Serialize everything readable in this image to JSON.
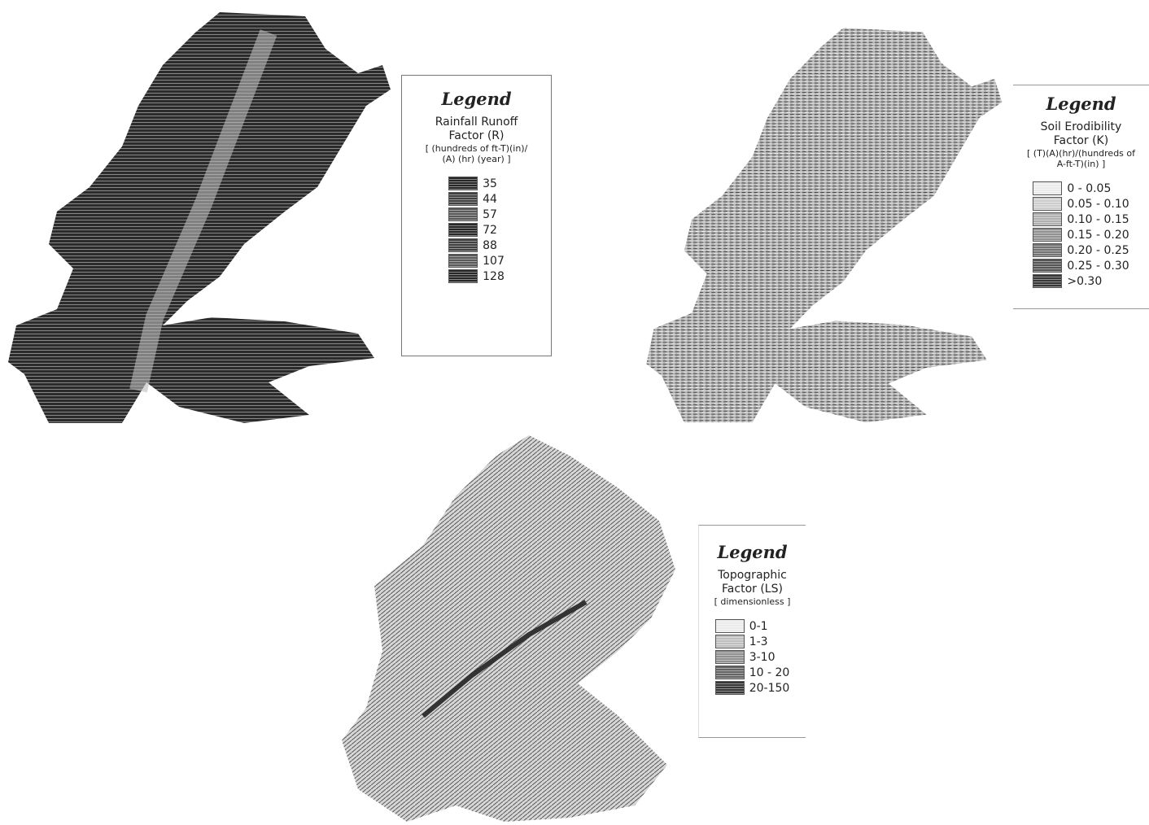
{
  "maps": [
    {
      "legend": {
        "heading": "Legend",
        "title": [
          "Rainfall Runoff",
          "Factor (R)"
        ],
        "units": [
          "[ (hundreds of ft-T)(in)/",
          "(A) (hr) (year) ]"
        ],
        "classes": [
          "35",
          "44",
          "57",
          "72",
          "88",
          "107",
          "128"
        ]
      }
    },
    {
      "legend": {
        "heading": "Legend",
        "title": [
          "Soil Erodibility",
          "Factor (K)"
        ],
        "units": [
          "[ (T)(A)(hr)/(hundreds of",
          "A-ft-T)(in) ]"
        ],
        "classes": [
          "0 - 0.05",
          "0.05 - 0.10",
          "0.10 - 0.15",
          "0.15 - 0.20",
          "0.20 - 0.25",
          "0.25 - 0.30",
          ">0.30"
        ]
      }
    },
    {
      "legend": {
        "heading": "Legend",
        "title": [
          "Topographic",
          "Factor (LS)"
        ],
        "units": [
          "[ dimensionless ]"
        ],
        "classes": [
          "0-1",
          "1-3",
          "3-10",
          "10 - 20",
          "20-150"
        ]
      }
    }
  ]
}
